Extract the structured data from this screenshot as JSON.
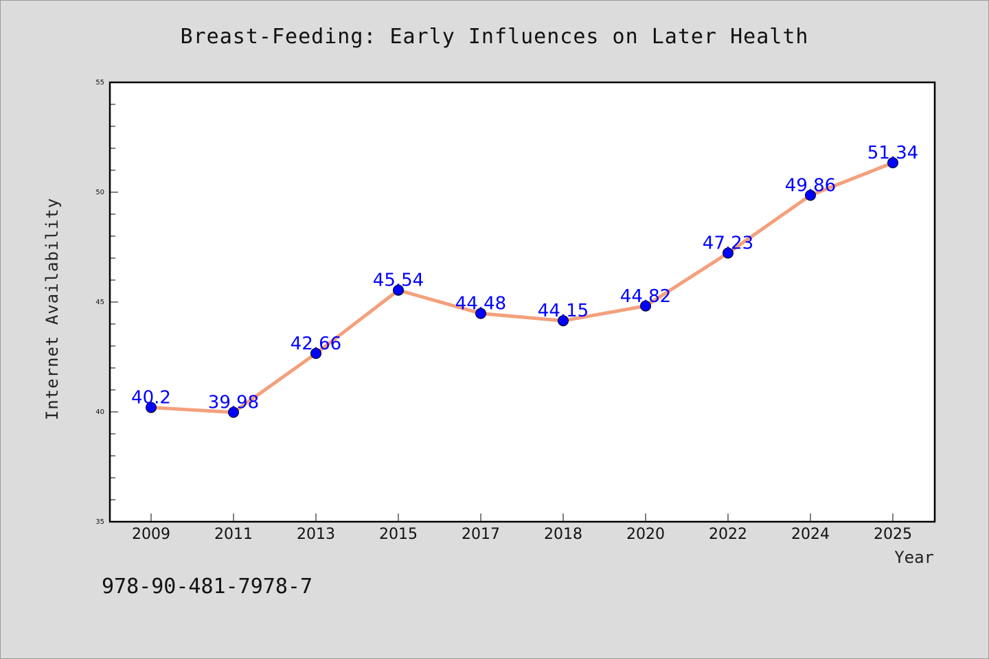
{
  "chart_data": {
    "type": "line",
    "title": "Breast-Feeding: Early Influences on Later Health",
    "xlabel": "Year",
    "ylabel": "Internet Availability",
    "categories": [
      "2009",
      "2011",
      "2013",
      "2015",
      "2017",
      "2018",
      "2020",
      "2022",
      "2024",
      "2025"
    ],
    "series": [
      {
        "values": [
          40.2,
          39.98,
          42.66,
          45.54,
          44.48,
          44.15,
          44.82,
          47.23,
          49.86,
          51.34
        ],
        "labels": [
          "40.2",
          "39.98",
          "42.66",
          "45.54",
          "44.48",
          "44.15",
          "44.82",
          "47.23",
          "49.86",
          "51.34"
        ]
      }
    ],
    "ylim": [
      35,
      55
    ],
    "yticks": [
      "35",
      "40",
      "45",
      "50",
      "55"
    ],
    "grid": false,
    "legend": "none",
    "colors": {
      "line": "#f4a07c",
      "marker": "#0000ff",
      "data_label": "#0000ff",
      "background": "#dcdcdc",
      "plot_background": "#ffffff"
    }
  },
  "annotation": "978-90-481-7978-7"
}
